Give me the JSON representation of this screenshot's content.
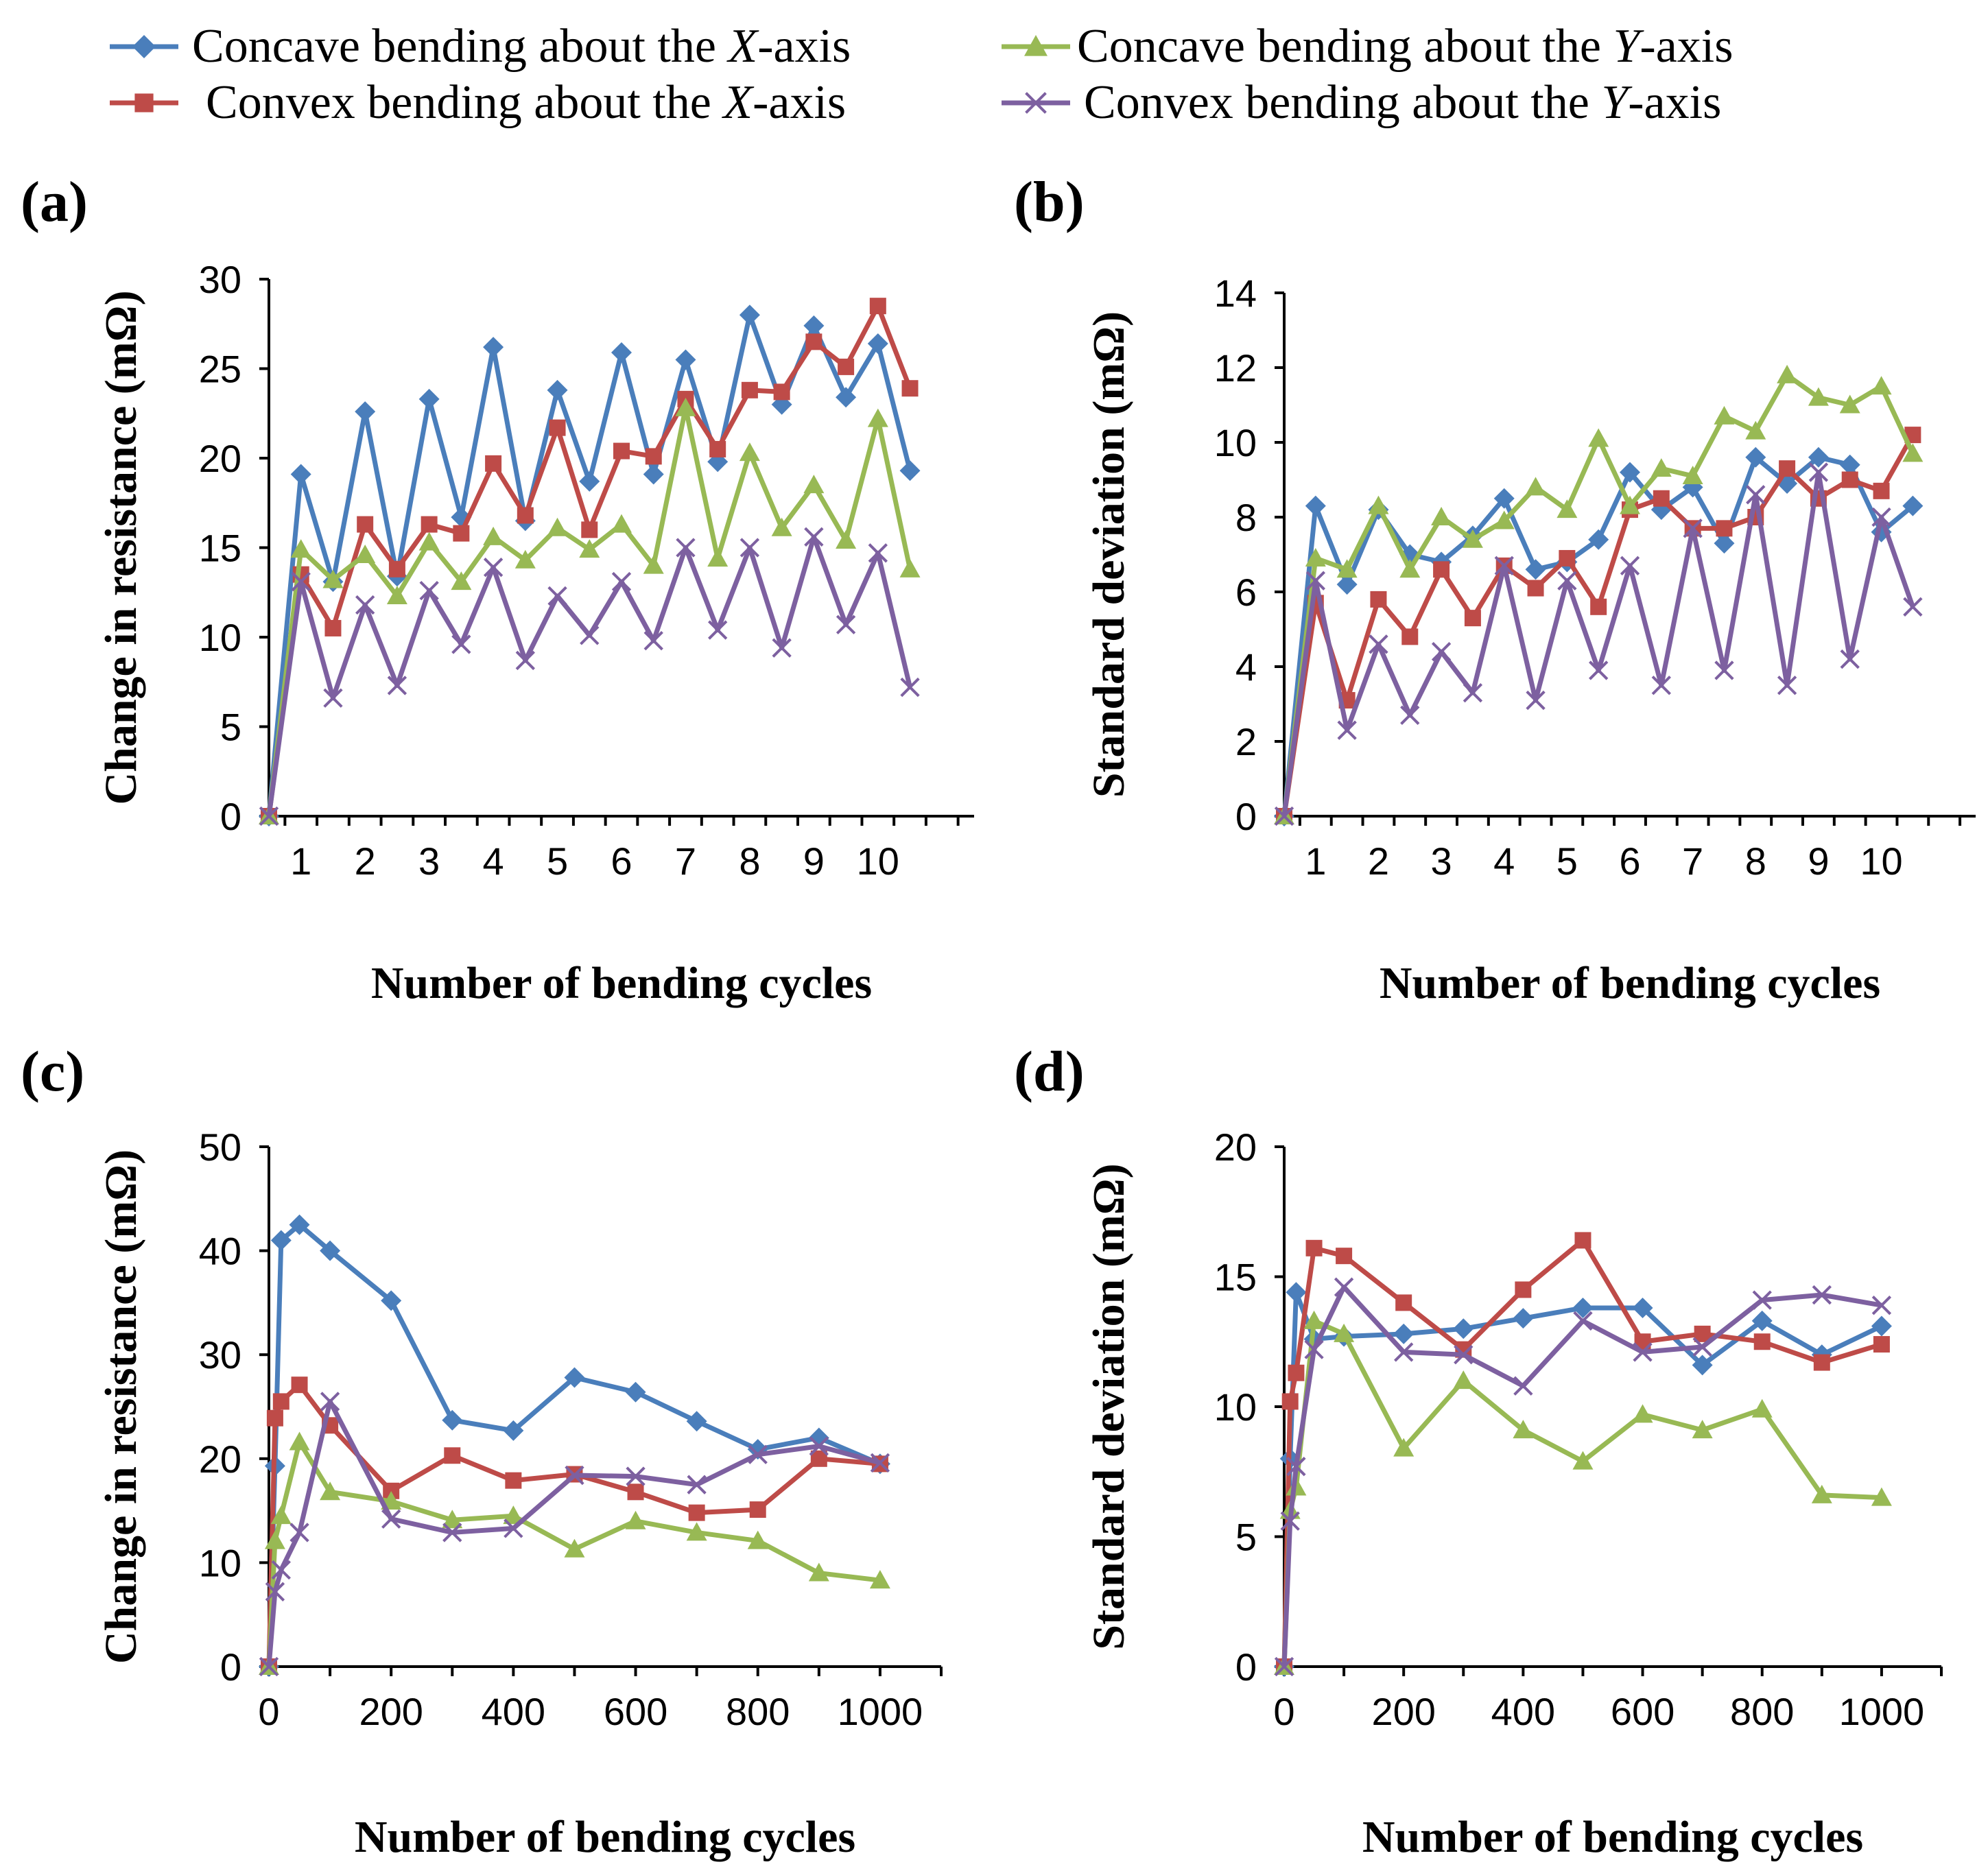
{
  "legend": {
    "entries": [
      {
        "pre": "Concave bending about the ",
        "axis": "X",
        "post": "-axis",
        "color": "#4A7EBB",
        "marker": "diamond"
      },
      {
        "pre": "Convex bending about the ",
        "axis": "X",
        "post": "-axis",
        "color": "#BE4B48",
        "marker": "square"
      },
      {
        "pre": "Concave bending about the ",
        "axis": "Y",
        "post": "-axis",
        "color": "#98B954",
        "marker": "triangle"
      },
      {
        "pre": "Convex bending about the ",
        "axis": "Y",
        "post": "-axis",
        "color": "#7D60A0",
        "marker": "x"
      }
    ]
  },
  "chart_data": [
    {
      "panel": "(a)",
      "type": "line",
      "xlabel": "Number of bending cycles",
      "ylabel": "Change in resistance (mΩ)",
      "ylim": [
        0,
        30
      ],
      "yticks": [
        0,
        5,
        10,
        15,
        20,
        25,
        30
      ],
      "xticks": [
        1,
        2,
        3,
        4,
        5,
        6,
        7,
        8,
        9,
        10
      ],
      "x": [
        0.5,
        1,
        1.5,
        2,
        2.5,
        3,
        3.5,
        4,
        4.5,
        5,
        5.5,
        6,
        6.5,
        7,
        7.5,
        8,
        8.5,
        9,
        9.5,
        10,
        10.5
      ],
      "xlim": [
        0.5,
        11.5
      ],
      "series": [
        {
          "name": "Concave bending about the X-axis",
          "values": [
            0,
            19.1,
            13.1,
            22.6,
            13.4,
            23.3,
            16.7,
            26.2,
            16.5,
            23.8,
            18.7,
            25.9,
            19.1,
            25.5,
            19.8,
            28.0,
            23.0,
            27.4,
            23.4,
            26.4,
            19.3
          ]
        },
        {
          "name": "Convex bending about the X-axis",
          "values": [
            0,
            13.5,
            10.5,
            16.3,
            13.8,
            16.3,
            15.8,
            19.7,
            16.8,
            21.7,
            16.0,
            20.4,
            20.1,
            23.3,
            20.5,
            23.8,
            23.7,
            26.5,
            25.1,
            28.5,
            23.9
          ]
        },
        {
          "name": "Concave bending about the Y-axis",
          "values": [
            0,
            14.9,
            13.2,
            14.6,
            12.3,
            15.3,
            13.1,
            15.6,
            14.3,
            16.1,
            14.9,
            16.3,
            14.0,
            22.8,
            14.4,
            20.3,
            16.1,
            18.5,
            15.4,
            22.2,
            13.8
          ]
        },
        {
          "name": "Convex bending about the Y-axis",
          "values": [
            0,
            13.1,
            6.6,
            11.8,
            7.3,
            12.6,
            9.6,
            13.9,
            8.7,
            12.3,
            10.1,
            13.1,
            9.8,
            15.0,
            10.4,
            15.0,
            9.4,
            15.6,
            10.7,
            14.7,
            7.2
          ]
        }
      ]
    },
    {
      "panel": "(b)",
      "type": "line",
      "xlabel": "Number of bending cycles",
      "ylabel": "Standard deviation (mΩ)",
      "ylim": [
        0,
        14
      ],
      "yticks": [
        0,
        2,
        4,
        6,
        8,
        10,
        12,
        14
      ],
      "xticks": [
        1,
        2,
        3,
        4,
        5,
        6,
        7,
        8,
        9,
        10
      ],
      "x": [
        0.5,
        1,
        1.5,
        2,
        2.5,
        3,
        3.5,
        4,
        4.5,
        5,
        5.5,
        6,
        6.5,
        7,
        7.5,
        8,
        8.5,
        9,
        9.5,
        10,
        10.5
      ],
      "xlim": [
        0.5,
        11.5
      ],
      "series": [
        {
          "name": "Concave bending about the X-axis",
          "values": [
            0,
            8.3,
            6.2,
            8.2,
            7.0,
            6.8,
            7.5,
            8.5,
            6.6,
            6.8,
            7.4,
            9.2,
            8.2,
            8.8,
            7.3,
            9.6,
            8.9,
            9.6,
            9.4,
            7.6,
            8.3
          ]
        },
        {
          "name": "Convex bending about the X-axis",
          "values": [
            0,
            5.7,
            3.1,
            5.8,
            4.8,
            6.6,
            5.3,
            6.7,
            6.1,
            6.9,
            5.6,
            8.2,
            8.5,
            7.7,
            7.7,
            8.0,
            9.3,
            8.5,
            9.0,
            8.7,
            10.2
          ]
        },
        {
          "name": "Concave bending about the Y-axis",
          "values": [
            0,
            6.9,
            6.6,
            8.3,
            6.6,
            8.0,
            7.4,
            7.9,
            8.8,
            8.2,
            10.1,
            8.3,
            9.3,
            9.1,
            10.7,
            10.3,
            11.8,
            11.2,
            11.0,
            11.5,
            9.7
          ]
        },
        {
          "name": "Convex bending about the Y-axis",
          "values": [
            0,
            6.3,
            2.3,
            4.6,
            2.7,
            4.4,
            3.3,
            6.7,
            3.1,
            6.3,
            3.9,
            6.7,
            3.5,
            7.7,
            3.9,
            8.6,
            3.5,
            9.2,
            4.2,
            8.0,
            5.6
          ]
        }
      ]
    },
    {
      "panel": "(c)",
      "type": "line",
      "xlabel": "Number of bending cycles",
      "ylabel": "Change in resistance (mΩ)",
      "ylim": [
        0,
        50
      ],
      "yticks": [
        0,
        10,
        20,
        30,
        40,
        50
      ],
      "xticks": [
        0,
        200,
        400,
        600,
        800,
        1000
      ],
      "xlim": [
        0,
        1100
      ],
      "series": [
        {
          "name": "Concave bending about the X-axis",
          "x": [
            0,
            10,
            20,
            50,
            100,
            200,
            300,
            400,
            500,
            600,
            700,
            800,
            900,
            1000
          ],
          "values": [
            0,
            19.3,
            41.0,
            42.5,
            40.0,
            35.2,
            23.7,
            22.7,
            27.8,
            26.4,
            23.6,
            20.9,
            22.0,
            19.5
          ]
        },
        {
          "name": "Convex bending about the X-axis",
          "x": [
            0,
            10,
            20,
            50,
            100,
            200,
            300,
            400,
            500,
            600,
            700,
            800,
            900,
            1000
          ],
          "values": [
            0,
            23.9,
            25.5,
            27.1,
            23.2,
            16.9,
            20.3,
            17.9,
            18.5,
            16.8,
            14.8,
            15.1,
            20.0,
            19.5
          ]
        },
        {
          "name": "Concave bending about the Y-axis",
          "x": [
            0,
            10,
            20,
            50,
            100,
            200,
            300,
            400,
            500,
            600,
            700,
            800,
            900,
            1000
          ],
          "values": [
            0,
            12.1,
            14.5,
            21.6,
            16.8,
            15.9,
            14.1,
            14.5,
            11.3,
            14.0,
            12.9,
            12.1,
            9.0,
            8.3
          ]
        },
        {
          "name": "Convex bending about the Y-axis",
          "x": [
            0,
            10,
            20,
            50,
            100,
            200,
            300,
            400,
            500,
            600,
            700,
            800,
            900,
            1000
          ],
          "values": [
            0,
            7.2,
            9.3,
            12.9,
            25.5,
            14.2,
            12.9,
            13.3,
            18.4,
            18.3,
            17.5,
            20.4,
            21.2,
            19.6
          ]
        }
      ]
    },
    {
      "panel": "(d)",
      "type": "line",
      "xlabel": "Number of bending cycles",
      "ylabel": "Standard deviation (mΩ)",
      "ylim": [
        0,
        20
      ],
      "yticks": [
        0,
        5,
        10,
        15,
        20
      ],
      "xticks": [
        0,
        200,
        400,
        600,
        800,
        1000
      ],
      "xlim": [
        0,
        1100
      ],
      "series": [
        {
          "name": "Concave bending about the X-axis",
          "x": [
            0,
            10,
            20,
            50,
            100,
            200,
            300,
            400,
            500,
            600,
            700,
            800,
            900,
            1000
          ],
          "values": [
            0,
            8.0,
            14.4,
            12.6,
            12.7,
            12.8,
            13.0,
            13.4,
            13.8,
            13.8,
            11.6,
            13.3,
            12.0,
            13.1
          ]
        },
        {
          "name": "Convex bending about the X-axis",
          "x": [
            0,
            10,
            20,
            50,
            100,
            200,
            300,
            400,
            500,
            600,
            700,
            800,
            900,
            1000
          ],
          "values": [
            0,
            10.2,
            11.3,
            16.1,
            15.8,
            14.0,
            12.2,
            14.5,
            16.4,
            12.5,
            12.8,
            12.5,
            11.7,
            12.4
          ]
        },
        {
          "name": "Concave bending about the Y-axis",
          "x": [
            0,
            10,
            20,
            50,
            100,
            200,
            300,
            400,
            500,
            600,
            700,
            800,
            900,
            1000
          ],
          "values": [
            0,
            6.0,
            6.9,
            13.3,
            12.8,
            8.4,
            11.0,
            9.1,
            7.9,
            9.7,
            9.1,
            9.9,
            6.6,
            6.5
          ]
        },
        {
          "name": "Convex bending about the Y-axis",
          "x": [
            0,
            10,
            20,
            50,
            100,
            200,
            300,
            400,
            500,
            600,
            700,
            800,
            900,
            1000
          ],
          "values": [
            0,
            5.6,
            7.7,
            12.2,
            14.6,
            12.1,
            12.0,
            10.8,
            13.3,
            12.1,
            12.3,
            14.1,
            14.3,
            13.9
          ]
        }
      ]
    }
  ]
}
